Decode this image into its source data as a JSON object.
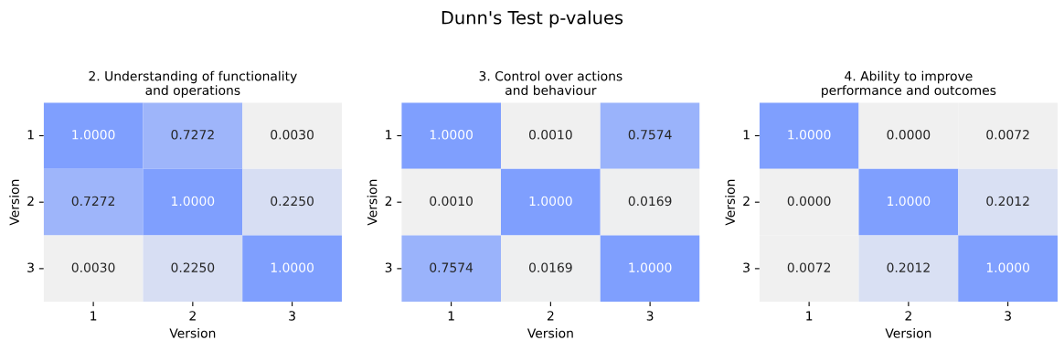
{
  "chart_data": [
    {
      "type": "heatmap",
      "annotations": [
        "Dunn's Test p-values"
      ],
      "title": "2. Understanding of functionality\nand operations",
      "xlabel": "Version",
      "ylabel": "Version",
      "categories": [
        "1",
        "2",
        "3"
      ],
      "y_categories": [
        "1",
        "2",
        "3"
      ],
      "cells": [
        [
          1.0,
          0.7272,
          0.003
        ],
        [
          0.7272,
          1.0,
          0.225
        ],
        [
          0.003,
          0.225,
          1.0
        ]
      ],
      "cell_labels": [
        [
          "1.0000",
          "0.7272",
          "0.0030"
        ],
        [
          "0.7272",
          "1.0000",
          "0.2250"
        ],
        [
          "0.0030",
          "0.2250",
          "1.0000"
        ]
      ]
    },
    {
      "type": "heatmap",
      "title": "3. Control over actions\nand behaviour",
      "xlabel": "Version",
      "ylabel": "Version",
      "categories": [
        "1",
        "2",
        "3"
      ],
      "y_categories": [
        "1",
        "2",
        "3"
      ],
      "cells": [
        [
          1.0,
          0.001,
          0.7574
        ],
        [
          0.001,
          1.0,
          0.0169
        ],
        [
          0.7574,
          0.0169,
          1.0
        ]
      ],
      "cell_labels": [
        [
          "1.0000",
          "0.0010",
          "0.7574"
        ],
        [
          "0.0010",
          "1.0000",
          "0.0169"
        ],
        [
          "0.7574",
          "0.0169",
          "1.0000"
        ]
      ]
    },
    {
      "type": "heatmap",
      "title": "4. Ability to improve\nperformance and outcomes",
      "xlabel": "Version",
      "ylabel": "Version",
      "categories": [
        "1",
        "2",
        "3"
      ],
      "y_categories": [
        "1",
        "2",
        "3"
      ],
      "cells": [
        [
          1.0,
          0.0,
          0.0072
        ],
        [
          0.0,
          1.0,
          0.2012
        ],
        [
          0.0072,
          0.2012,
          1.0
        ]
      ],
      "cell_labels": [
        [
          "1.0000",
          "0.0000",
          "0.0072"
        ],
        [
          "0.0000",
          "1.0000",
          "0.2012"
        ],
        [
          "0.0072",
          "0.2012",
          "1.0000"
        ]
      ]
    }
  ]
}
